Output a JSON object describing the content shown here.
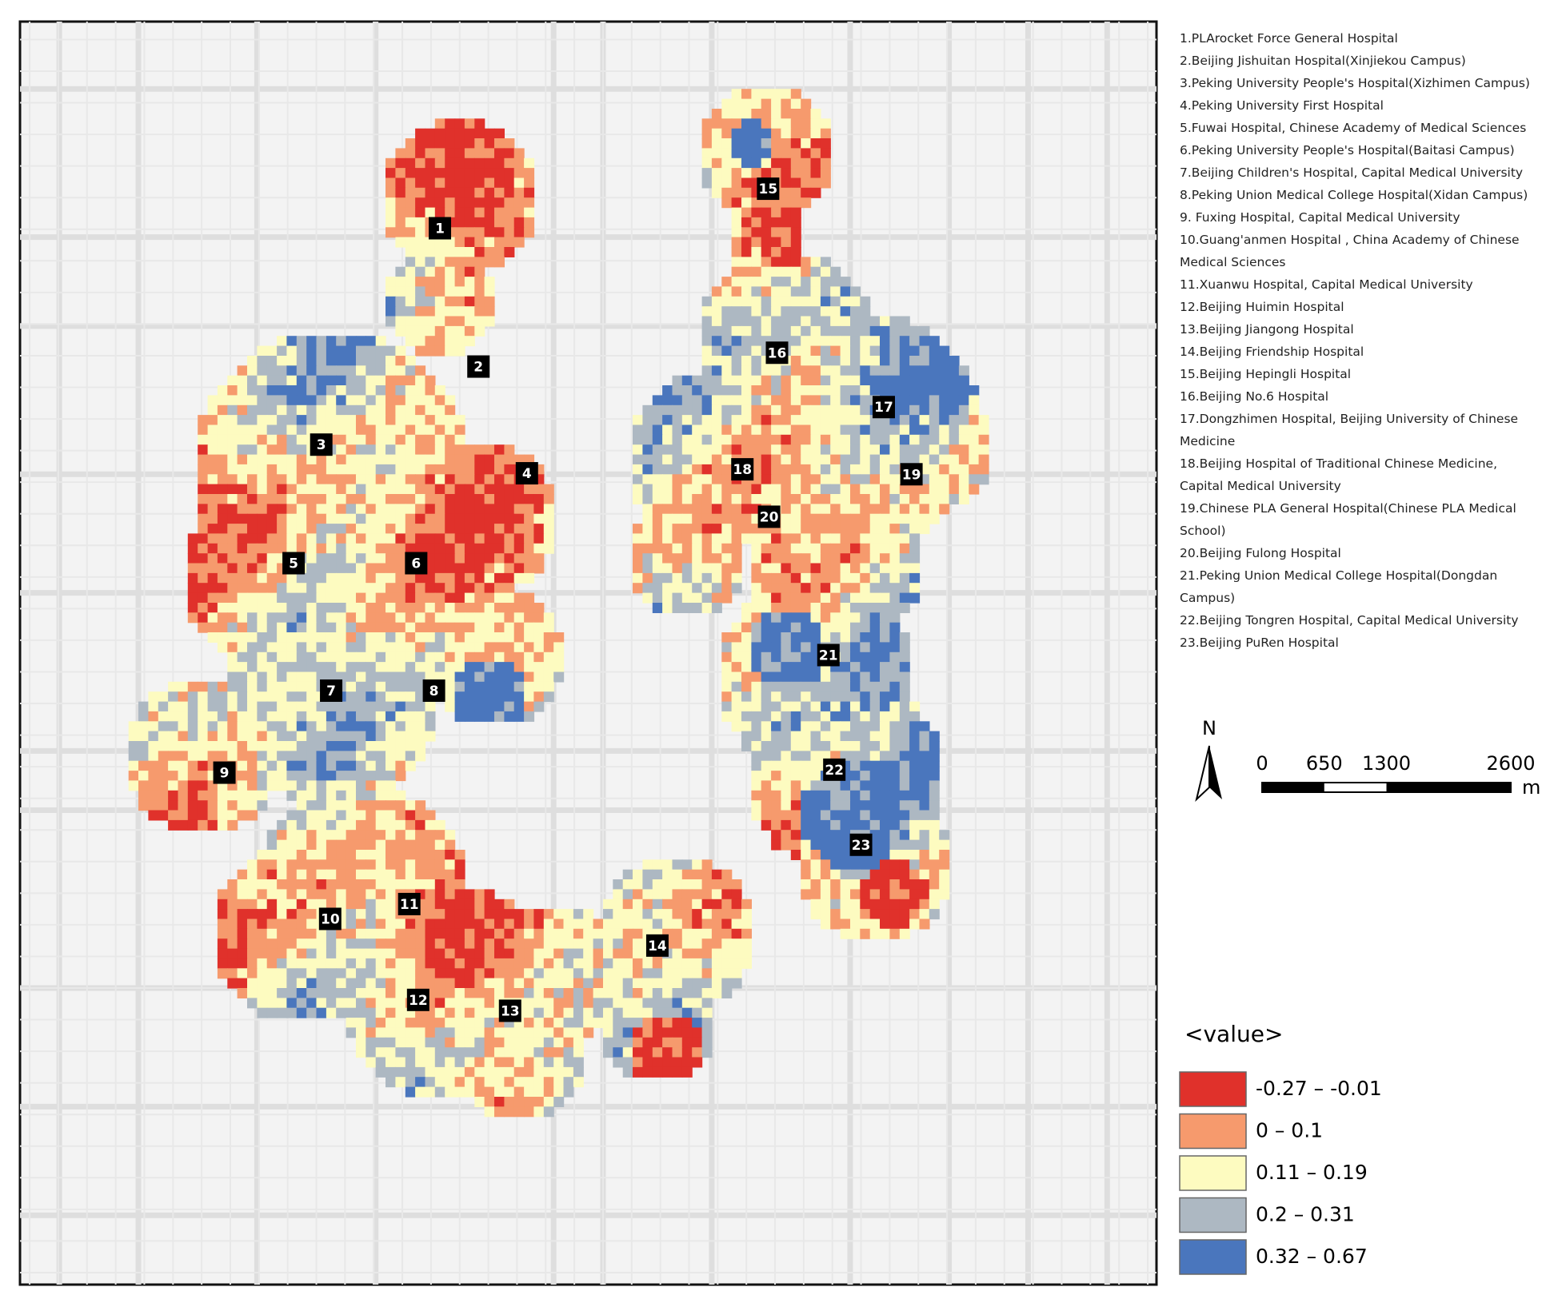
{
  "hospitals": [
    "1.PLArocket Force General Hospital",
    "2.Beijing Jishuitan Hospital(Xinjiekou Campus)",
    "3.Peking University People's Hospital(Xizhimen Campus)",
    "4.Peking University First Hospital",
    "5.Fuwai Hospital, Chinese Academy of Medical Sciences",
    "6.Peking University People's Hospital(Baitasi Campus)",
    "7.Beijing Children's Hospital, Capital Medical University",
    "8.Peking Union Medical College Hospital(Xidan Campus)",
    "9. Fuxing Hospital, Capital Medical University",
    "10.Guang'anmen Hospital , China Academy of Chinese Medical Sciences",
    "11.Xuanwu Hospital, Capital Medical University",
    "12.Beijing Huimin Hospital",
    "13.Beijing Jiangong Hospital",
    "14.Beijing Friendship Hospital",
    "15.Beijing Hepingli Hospital",
    "16.Beijing No.6 Hospital",
    "17.Dongzhimen Hospital, Beijing University of Chinese Medicine",
    "18.Beijing Hospital of Traditional Chinese Medicine, Capital Medical University",
    "19.Chinese PLA General Hospital(Chinese PLA Medical School)",
    "20.Beijing Fulong Hospital",
    "21.Peking Union Medical College Hospital(Dongdan Campus)",
    "22.Beijing Tongren Hospital, Capital Medical University",
    "23.Beijing PuRen Hospital"
  ],
  "markers": [
    "1",
    "2",
    "3",
    "4",
    "5",
    "6",
    "7",
    "8",
    "9",
    "10",
    "11",
    "12",
    "13",
    "14",
    "15",
    "16",
    "17",
    "18",
    "19",
    "20",
    "21",
    "22",
    "23"
  ],
  "north": "N",
  "scale_bar": {
    "ticks": [
      0,
      650,
      1300,
      2600
    ],
    "unit": "m"
  },
  "legend": {
    "title": "<value>",
    "items": [
      {
        "label": "-0.27  –  -0.01",
        "color": "#e0312b"
      },
      {
        "label": "0  –  0.1",
        "color": "#f69a6d"
      },
      {
        "label": "0.11  –  0.19",
        "color": "#fdfbc0"
      },
      {
        "label": "0.2  –  0.31",
        "color": "#adb8c2"
      },
      {
        "label": "0.32  –  0.67",
        "color": "#4a76bd"
      }
    ]
  }
}
